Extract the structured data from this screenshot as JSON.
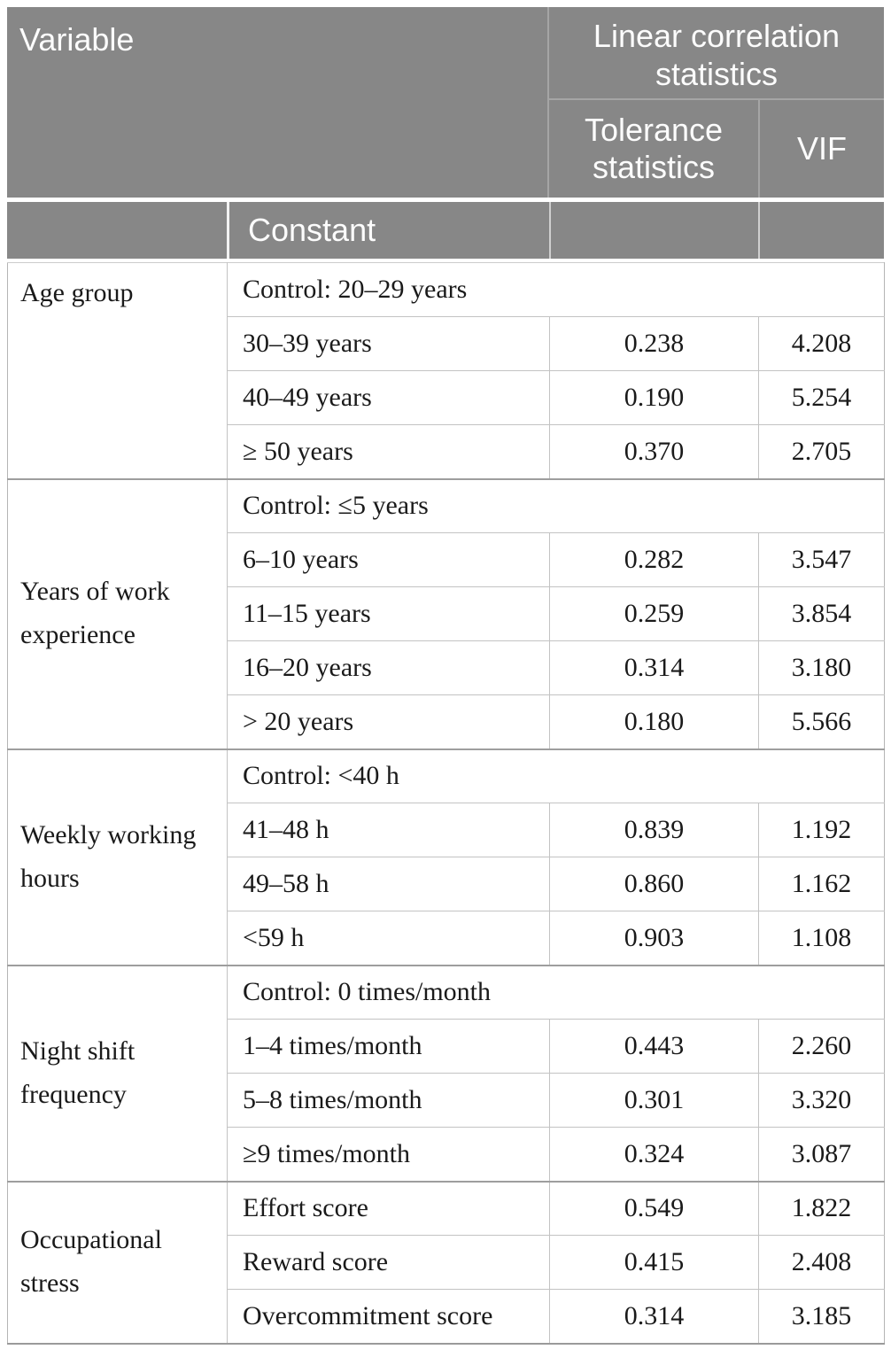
{
  "colors": {
    "header_bg": "#878787",
    "header_text": "#fcfcfc",
    "body_text": "#1a1a1a"
  },
  "header": {
    "variable": "Variable",
    "group": "Linear correlation statistics",
    "tolerance": "Tolerance statistics",
    "vif": "VIF",
    "constant": "Constant"
  },
  "sections": [
    {
      "variable": "Age group",
      "rows": [
        {
          "label": "Control: 20–29 years",
          "control": true
        },
        {
          "label": "30–39 years",
          "tolerance": "0.238",
          "vif": "4.208"
        },
        {
          "label": "40–49 years",
          "tolerance": "0.190",
          "vif": "5.254"
        },
        {
          "label": "≥ 50 years",
          "tolerance": "0.370",
          "vif": "2.705"
        }
      ]
    },
    {
      "variable": "Years of work experience",
      "rows": [
        {
          "label": "Control: ≤5 years",
          "control": true
        },
        {
          "label": "6–10 years",
          "tolerance": "0.282",
          "vif": "3.547"
        },
        {
          "label": "11–15 years",
          "tolerance": "0.259",
          "vif": "3.854"
        },
        {
          "label": "16–20 years",
          "tolerance": "0.314",
          "vif": "3.180"
        },
        {
          "label": "> 20 years",
          "tolerance": "0.180",
          "vif": "5.566"
        }
      ]
    },
    {
      "variable": "Weekly working hours",
      "rows": [
        {
          "label": "Control: <40 h",
          "control": true
        },
        {
          "label": "41–48 h",
          "tolerance": "0.839",
          "vif": "1.192"
        },
        {
          "label": "49–58 h",
          "tolerance": "0.860",
          "vif": "1.162"
        },
        {
          "label": "<59 h",
          "tolerance": "0.903",
          "vif": "1.108"
        }
      ]
    },
    {
      "variable": "Night shift frequency",
      "rows": [
        {
          "label": "Control: 0 times/month",
          "control": true
        },
        {
          "label": "1–4 times/month",
          "tolerance": "0.443",
          "vif": "2.260"
        },
        {
          "label": "5–8 times/month",
          "tolerance": "0.301",
          "vif": "3.320"
        },
        {
          "label": "≥9 times/month",
          "tolerance": "0.324",
          "vif": "3.087"
        }
      ]
    },
    {
      "variable": "Occupational stress",
      "rows": [
        {
          "label": "Effort score",
          "tolerance": "0.549",
          "vif": "1.822"
        },
        {
          "label": "Reward score",
          "tolerance": "0.415",
          "vif": "2.408"
        },
        {
          "label": "Overcommitment score",
          "tolerance": "0.314",
          "vif": "3.185"
        }
      ]
    }
  ]
}
